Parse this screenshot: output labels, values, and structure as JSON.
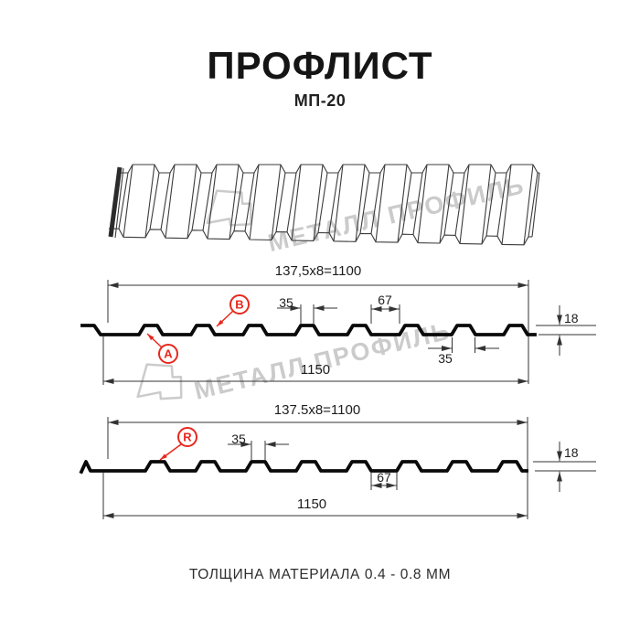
{
  "header": {
    "title": "ПРОФЛИСТ",
    "subtitle": "МП-20"
  },
  "watermark": {
    "brand": "МЕТАЛЛ ПРОФИЛЬ"
  },
  "profile_top": {
    "marker_a": "A",
    "marker_b": "B",
    "dim_module": "137,5x8=1100",
    "dim_rib_top_width": "35",
    "dim_rib_spacing": "67",
    "dim_height": "18",
    "dim_rib_bottom_width": "35",
    "dim_overall_width": "1150"
  },
  "profile_bottom": {
    "marker_r": "R",
    "dim_module": "137.5x8=1100",
    "dim_rib_top_width": "35",
    "dim_rib_spacing": "67",
    "dim_height": "18",
    "dim_overall_width": "1150"
  },
  "footer": {
    "material_note": "ТОЛЩИНА МАТЕРИАЛА 0.4 - 0.8 ММ"
  },
  "colors": {
    "accent_red": "#e8281e",
    "line_dark": "#2e2e2e",
    "watermark_gray": "#cbcbcb"
  }
}
